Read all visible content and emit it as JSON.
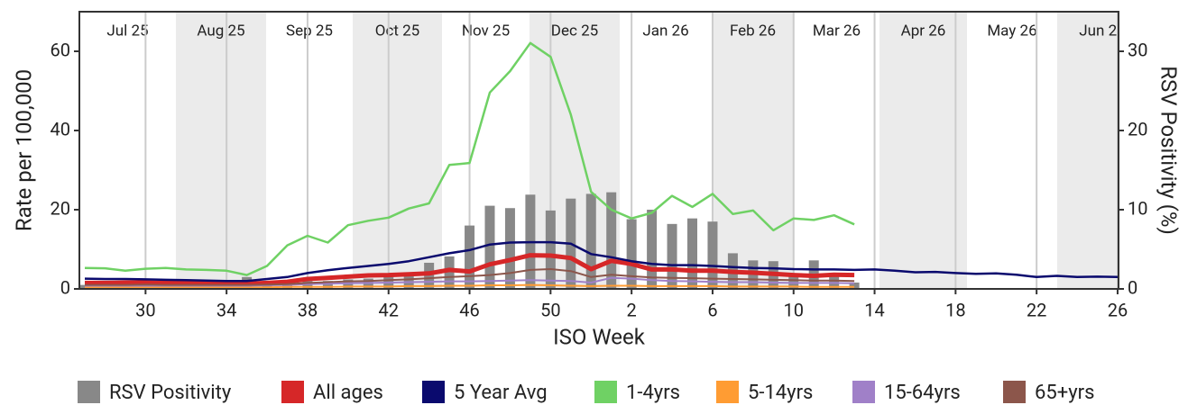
{
  "chart_data": {
    "type": "line",
    "x_label": "ISO Week",
    "y_label": "Rate per 100,000",
    "y2_label": "RSV Positivity (%)",
    "months": [
      "Jul 25",
      "Aug 25",
      "Sep 25",
      "Oct 25",
      "Nov 25",
      "Dec 25",
      "Jan 26",
      "Feb 26",
      "Mar 26",
      "Apr 26",
      "May 26",
      "Jun 26"
    ],
    "month_shading": "#ebebeb",
    "categories": [
      null,
      null,
      null,
      "30",
      null,
      null,
      null,
      "34",
      null,
      null,
      null,
      "38",
      null,
      null,
      null,
      "42",
      null,
      null,
      null,
      "46",
      null,
      null,
      null,
      "50",
      null,
      null,
      null,
      "2",
      null,
      null,
      null,
      "6",
      null,
      null,
      null,
      "10",
      null,
      null,
      null,
      "14",
      null,
      null,
      null,
      "18",
      null,
      null,
      null,
      "22",
      null,
      null,
      null,
      "26"
    ],
    "ylim": [
      0,
      70
    ],
    "yticks": [
      0,
      20,
      40,
      60
    ],
    "y2lim": [
      0,
      35
    ],
    "y2ticks": [
      0,
      10,
      20,
      30
    ],
    "grid": "x",
    "legend": "bottom",
    "series": [
      {
        "name": "RSV Positivity",
        "type": "bar",
        "axis": "y2",
        "color": "#888888",
        "values": [
          0.5,
          0.5,
          0.5,
          0.5,
          0.5,
          0.5,
          0.6,
          0.7,
          1.5,
          0.8,
          0.9,
          1.0,
          1.0,
          1.2,
          1.3,
          1.5,
          1.8,
          3.3,
          4.1,
          8.0,
          10.5,
          10.2,
          11.9,
          9.9,
          11.4,
          12.0,
          12.2,
          8.8,
          10.0,
          8.2,
          8.9,
          8.5,
          4.5,
          3.6,
          3.5,
          1.8,
          3.6,
          1.8,
          0.8,
          null,
          null,
          null,
          null,
          null,
          null,
          null,
          null,
          null,
          null,
          null,
          null,
          null
        ]
      },
      {
        "name": "All ages",
        "type": "line",
        "color": "#d62728",
        "line_width": 5,
        "values": [
          1.5,
          1.5,
          1.6,
          1.6,
          1.5,
          1.5,
          1.4,
          1.4,
          1.3,
          1.5,
          1.8,
          2.5,
          2.8,
          3.1,
          3.4,
          3.5,
          3.7,
          3.9,
          4.8,
          4.4,
          6.2,
          7.3,
          8.5,
          8.4,
          7.8,
          5.0,
          7.1,
          6.3,
          4.9,
          4.9,
          4.6,
          4.6,
          4.3,
          4.1,
          3.8,
          3.5,
          3.3,
          3.6,
          3.5,
          null,
          null,
          null,
          null,
          null,
          null,
          null,
          null,
          null,
          null,
          null,
          null,
          null
        ]
      },
      {
        "name": "5 Year Avg",
        "type": "line",
        "color": "#0a0a6e",
        "line_width": 2.5,
        "values": [
          2.6,
          2.5,
          2.5,
          2.4,
          2.3,
          2.2,
          2.1,
          2.0,
          2.0,
          2.5,
          3.0,
          4.0,
          4.7,
          5.3,
          5.8,
          6.3,
          7.0,
          8.0,
          9.0,
          9.8,
          11.2,
          11.7,
          11.8,
          11.8,
          11.4,
          8.8,
          8.0,
          7.0,
          6.3,
          6.0,
          6.0,
          5.8,
          5.5,
          5.3,
          5.2,
          5.0,
          4.9,
          4.9,
          4.8,
          4.9,
          4.6,
          4.2,
          4.3,
          4.0,
          3.8,
          3.9,
          3.6,
          3.0,
          3.3,
          3.0,
          3.1,
          3.0
        ]
      },
      {
        "name": "1-4yrs",
        "type": "line",
        "color": "#6fd164",
        "line_width": 2.5,
        "values": [
          5.3,
          5.2,
          4.6,
          5.1,
          5.3,
          4.9,
          4.8,
          4.6,
          3.5,
          5.8,
          11.0,
          13.4,
          11.7,
          16.1,
          17.2,
          18.0,
          20.3,
          21.6,
          31.3,
          31.8,
          49.6,
          55.0,
          62.1,
          58.6,
          44.0,
          24.5,
          20.0,
          17.8,
          19.2,
          23.5,
          20.7,
          24.0,
          18.9,
          19.8,
          14.8,
          17.8,
          17.4,
          18.6,
          16.3,
          null,
          null,
          null,
          null,
          null,
          null,
          null,
          null,
          null,
          null,
          null,
          null,
          null
        ]
      },
      {
        "name": "5-14yrs",
        "type": "line",
        "color": "#ff9c33",
        "line_width": 2,
        "values": [
          0.4,
          0.4,
          0.4,
          0.4,
          0.4,
          0.4,
          0.4,
          0.4,
          0.4,
          0.4,
          0.5,
          0.5,
          0.5,
          0.6,
          0.6,
          0.6,
          0.7,
          0.7,
          0.8,
          0.8,
          0.9,
          0.9,
          1.0,
          0.9,
          0.8,
          0.7,
          0.8,
          0.8,
          0.7,
          0.7,
          0.7,
          0.7,
          0.6,
          0.6,
          0.6,
          0.6,
          0.5,
          0.5,
          0.5,
          null,
          null,
          null,
          null,
          null,
          null,
          null,
          null,
          null,
          null,
          null,
          null,
          null
        ]
      },
      {
        "name": "15-64yrs",
        "type": "line",
        "color": "#a080c8",
        "line_width": 2,
        "values": [
          0.8,
          0.8,
          0.8,
          0.8,
          0.8,
          0.8,
          0.8,
          0.8,
          0.8,
          0.9,
          1.0,
          1.2,
          1.3,
          1.4,
          1.5,
          1.6,
          1.7,
          1.8,
          1.9,
          1.9,
          2.0,
          2.1,
          2.2,
          2.1,
          2.0,
          1.6,
          2.8,
          2.6,
          2.2,
          2.0,
          1.9,
          1.8,
          1.7,
          1.7,
          1.6,
          1.5,
          1.5,
          1.5,
          1.4,
          null,
          null,
          null,
          null,
          null,
          null,
          null,
          null,
          null,
          null,
          null,
          null,
          null
        ]
      },
      {
        "name": "65+yrs",
        "type": "line",
        "color": "#8c564b",
        "line_width": 2,
        "values": [
          1.0,
          1.0,
          1.0,
          1.1,
          1.0,
          1.0,
          1.0,
          1.0,
          1.0,
          1.1,
          1.2,
          1.5,
          1.7,
          1.9,
          2.0,
          2.2,
          2.4,
          2.7,
          3.0,
          3.2,
          3.5,
          4.0,
          4.8,
          5.0,
          4.5,
          3.0,
          3.6,
          3.2,
          2.9,
          2.8,
          2.7,
          2.6,
          2.5,
          2.4,
          2.3,
          2.2,
          2.1,
          2.1,
          2.0,
          null,
          null,
          null,
          null,
          null,
          null,
          null,
          null,
          null,
          null,
          null,
          null,
          null
        ]
      }
    ]
  }
}
